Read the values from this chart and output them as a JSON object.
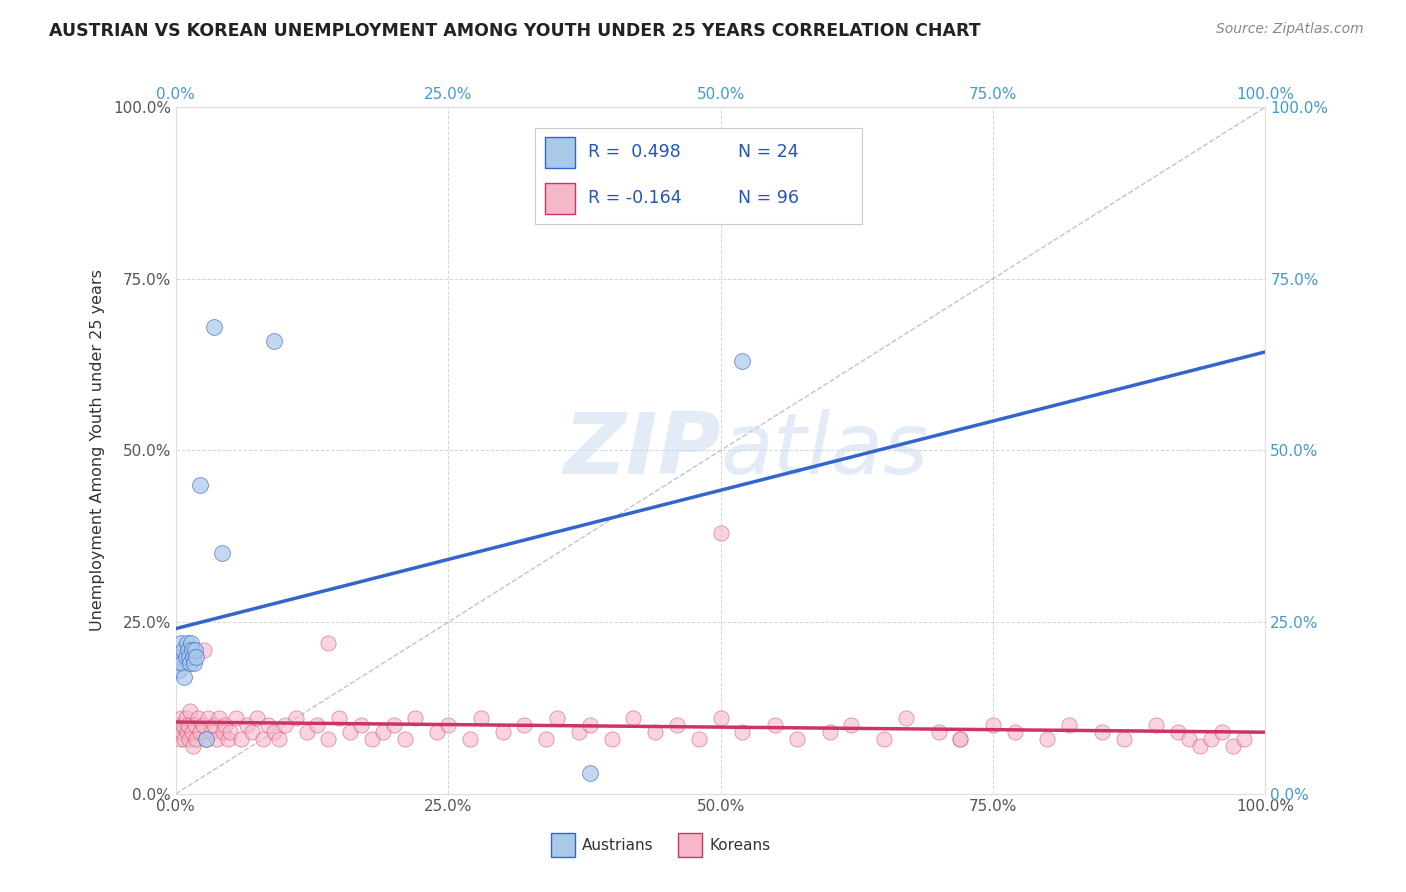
{
  "title": "AUSTRIAN VS KOREAN UNEMPLOYMENT AMONG YOUTH UNDER 25 YEARS CORRELATION CHART",
  "source": "Source: ZipAtlas.com",
  "ylabel": "Unemployment Among Youth under 25 years",
  "austria_color": "#aac8e8",
  "korea_color": "#f5b8c8",
  "austria_line_color": "#3366cc",
  "korea_line_color": "#cc3366",
  "diagonal_color": "#9999bb",
  "background_color": "#ffffff",
  "watermark_zip": "ZIP",
  "watermark_atlas": "atlas",
  "austria_x": [
    0.003,
    0.004,
    0.005,
    0.006,
    0.007,
    0.008,
    0.009,
    0.01,
    0.011,
    0.012,
    0.013,
    0.014,
    0.015,
    0.016,
    0.017,
    0.018,
    0.019,
    0.022,
    0.028,
    0.035,
    0.042,
    0.09,
    0.38,
    0.52
  ],
  "austria_y": [
    0.18,
    0.2,
    0.22,
    0.19,
    0.21,
    0.17,
    0.2,
    0.22,
    0.21,
    0.2,
    0.19,
    0.22,
    0.21,
    0.2,
    0.19,
    0.21,
    0.2,
    0.45,
    0.08,
    0.68,
    0.35,
    0.66,
    0.03,
    0.63
  ],
  "korea_x": [
    0.002,
    0.003,
    0.004,
    0.005,
    0.006,
    0.007,
    0.008,
    0.009,
    0.01,
    0.011,
    0.012,
    0.013,
    0.015,
    0.016,
    0.018,
    0.019,
    0.02,
    0.022,
    0.025,
    0.028,
    0.03,
    0.032,
    0.035,
    0.038,
    0.04,
    0.043,
    0.045,
    0.048,
    0.05,
    0.055,
    0.06,
    0.065,
    0.07,
    0.075,
    0.08,
    0.085,
    0.09,
    0.095,
    0.1,
    0.11,
    0.12,
    0.13,
    0.14,
    0.15,
    0.16,
    0.17,
    0.18,
    0.19,
    0.2,
    0.21,
    0.22,
    0.24,
    0.25,
    0.27,
    0.28,
    0.3,
    0.32,
    0.34,
    0.35,
    0.37,
    0.38,
    0.4,
    0.42,
    0.44,
    0.46,
    0.48,
    0.5,
    0.52,
    0.55,
    0.57,
    0.6,
    0.62,
    0.65,
    0.67,
    0.7,
    0.72,
    0.75,
    0.77,
    0.8,
    0.82,
    0.85,
    0.87,
    0.9,
    0.92,
    0.93,
    0.94,
    0.95,
    0.96,
    0.97,
    0.98,
    0.0015,
    0.0025,
    0.026,
    0.14,
    0.5,
    0.72
  ],
  "korea_y": [
    0.09,
    0.1,
    0.08,
    0.11,
    0.09,
    0.1,
    0.08,
    0.11,
    0.09,
    0.1,
    0.08,
    0.12,
    0.09,
    0.07,
    0.1,
    0.08,
    0.11,
    0.09,
    0.1,
    0.08,
    0.11,
    0.09,
    0.1,
    0.08,
    0.11,
    0.09,
    0.1,
    0.08,
    0.09,
    0.11,
    0.08,
    0.1,
    0.09,
    0.11,
    0.08,
    0.1,
    0.09,
    0.08,
    0.1,
    0.11,
    0.09,
    0.1,
    0.08,
    0.11,
    0.09,
    0.1,
    0.08,
    0.09,
    0.1,
    0.08,
    0.11,
    0.09,
    0.1,
    0.08,
    0.11,
    0.09,
    0.1,
    0.08,
    0.11,
    0.09,
    0.1,
    0.08,
    0.11,
    0.09,
    0.1,
    0.08,
    0.11,
    0.09,
    0.1,
    0.08,
    0.09,
    0.1,
    0.08,
    0.11,
    0.09,
    0.08,
    0.1,
    0.09,
    0.08,
    0.1,
    0.09,
    0.08,
    0.1,
    0.09,
    0.08,
    0.07,
    0.08,
    0.09,
    0.07,
    0.08,
    0.2,
    0.19,
    0.21,
    0.22,
    0.38,
    0.08
  ],
  "xlim": [
    0.0,
    1.0
  ],
  "ylim": [
    0.0,
    1.0
  ],
  "xticks": [
    0.0,
    0.25,
    0.5,
    0.75,
    1.0
  ],
  "yticks": [
    0.0,
    0.25,
    0.5,
    0.75,
    1.0
  ],
  "tick_labels": [
    "0.0%",
    "25.0%",
    "50.0%",
    "75.0%",
    "100.0%"
  ],
  "right_tick_color": "#4499cc",
  "grid_color": "#cccccc",
  "legend_r_austria": "R =  0.498",
  "legend_n_austria": "N = 24",
  "legend_r_korea": "R = -0.164",
  "legend_n_korea": "N = 96"
}
